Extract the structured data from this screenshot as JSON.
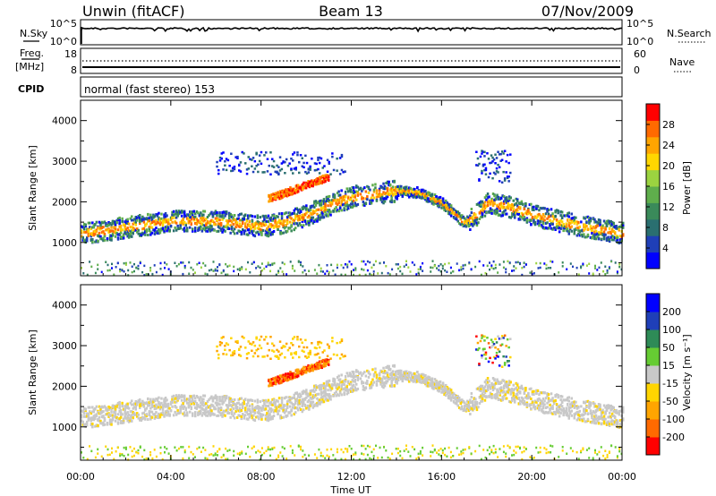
{
  "chart_data": {
    "type": "heatmap",
    "title": {
      "station": "Unwin (fitACF)",
      "beam": "Beam 13",
      "date": "07/Nov/2009"
    },
    "header_panels": {
      "nsky": {
        "label": "N.Sky",
        "ticks_left": [
          "10^5",
          "10^0"
        ],
        "ticks_right": [
          "10^5",
          "10^0"
        ],
        "right_label": "N.Search"
      },
      "freq": {
        "label_line1": "Freq.",
        "label_line2": "[MHz]",
        "ticks_left": [
          "18",
          "8"
        ],
        "ticks_right": [
          "60",
          "0"
        ],
        "right_label": "Nave"
      },
      "cpid": {
        "label": "CPID",
        "text": "normal (fast stereo) 153"
      }
    },
    "xaxis": {
      "label": "Time UT",
      "range_hours": [
        0,
        24
      ],
      "ticks": [
        "00:00",
        "04:00",
        "08:00",
        "12:00",
        "16:00",
        "20:00",
        "00:00"
      ]
    },
    "power_panel": {
      "ylabel": "Slant Range [km]",
      "yticks": [
        "4000",
        "3000",
        "2000",
        "1000"
      ],
      "yrange_km": [
        180,
        4500
      ],
      "colorbar": {
        "label": "Power [dB]",
        "ticks": [
          "28",
          "24",
          "20",
          "16",
          "12",
          "8",
          "4"
        ],
        "range": [
          0,
          32
        ],
        "colors": [
          "#0000ff",
          "#1f3fb8",
          "#2a6f70",
          "#3a8a5a",
          "#5fae4c",
          "#9bd340",
          "#ffd700",
          "#ffa500",
          "#ff6a00",
          "#ff0000"
        ]
      }
    },
    "velocity_panel": {
      "ylabel": "Slant Range [km]",
      "yticks": [
        "4000",
        "3000",
        "2000",
        "1000"
      ],
      "yrange_km": [
        180,
        4500
      ],
      "colorbar": {
        "label": "Velocity [m s⁻¹]",
        "ticks": [
          "200",
          "100",
          "50",
          "15",
          "-15",
          "-50",
          "-100",
          "-200"
        ],
        "range": [
          -250,
          250
        ],
        "colors": [
          "#ff0000",
          "#ff6a00",
          "#ffa500",
          "#ffd500",
          "#c8c8c8",
          "#66cc33",
          "#2e8b57",
          "#1f3fb8",
          "#0000ff"
        ]
      }
    },
    "scatter_bands": [
      {
        "name": "main-band",
        "t0": 0.0,
        "t1": 24.0,
        "center_km": [
          [
            0,
            1250
          ],
          [
            4,
            1550
          ],
          [
            6,
            1560
          ],
          [
            8,
            1420
          ],
          [
            9,
            1520
          ],
          [
            10,
            1700
          ],
          [
            11,
            1950
          ],
          [
            12,
            2150
          ],
          [
            14,
            2300
          ],
          [
            15,
            2250
          ],
          [
            16,
            2000
          ],
          [
            17,
            1500
          ],
          [
            17.5,
            1700
          ],
          [
            18,
            2000
          ],
          [
            19,
            1900
          ],
          [
            20,
            1700
          ],
          [
            22,
            1450
          ],
          [
            24,
            1250
          ]
        ]
      },
      {
        "name": "upper-patch",
        "t0": 6.0,
        "t1": 11.7,
        "range_km": [
          2700,
          3250
        ]
      },
      {
        "name": "ascending-arc",
        "t0": 8.3,
        "t1": 11.0,
        "range_km": [
          2100,
          2700
        ]
      },
      {
        "name": "late-patch",
        "t0": 17.5,
        "t1": 19.0,
        "range_km": [
          2500,
          3300
        ]
      },
      {
        "name": "low-range-clutter",
        "t0": 0.0,
        "t1": 24.0,
        "range_km": [
          200,
          600
        ]
      }
    ]
  }
}
